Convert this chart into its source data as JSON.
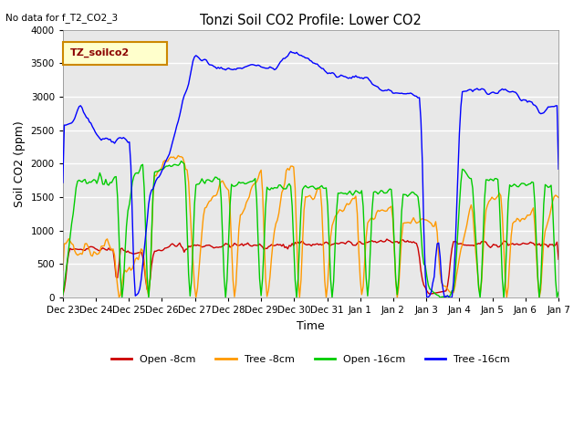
{
  "title": "Tonzi Soil CO2 Profile: Lower CO2",
  "no_data_text": "No data for f_T2_CO2_3",
  "legend_box_text": "TZ_soilco2",
  "xlabel": "Time",
  "ylabel": "Soil CO2 (ppm)",
  "ylim": [
    0,
    4000
  ],
  "yticks": [
    0,
    500,
    1000,
    1500,
    2000,
    2500,
    3000,
    3500,
    4000
  ],
  "colors": {
    "open_8": "#cc0000",
    "tree_8": "#ff9900",
    "open_16": "#00cc00",
    "tree_16": "#0000ff"
  },
  "legend_labels": [
    "Open -8cm",
    "Tree -8cm",
    "Open -16cm",
    "Tree -16cm"
  ],
  "background_color": "#e8e8e8",
  "x_tick_labels": [
    "Dec 23",
    "Dec 24",
    "Dec 25",
    "Dec 26",
    "Dec 27",
    "Dec 28",
    "Dec 29",
    "Dec 30",
    "Dec 31",
    "Jan 1",
    "Jan 2",
    "Jan 3",
    "Jan 4",
    "Jan 5",
    "Jan 6",
    "Jan 7"
  ]
}
